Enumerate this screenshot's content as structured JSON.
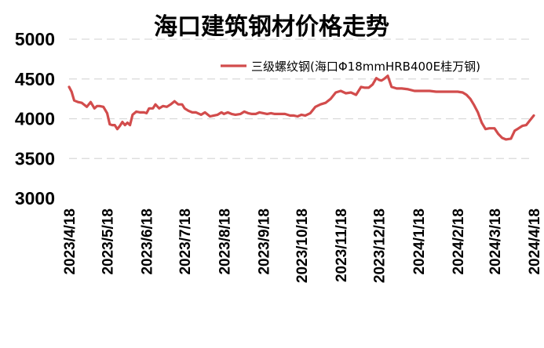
{
  "chart_data": {
    "type": "line",
    "title": "海口建筑钢材价格走势",
    "xlabel": "",
    "ylabel": "",
    "ylim": [
      3000,
      5000
    ],
    "yticks": [
      "5000",
      "4500",
      "4000",
      "3500",
      "3000"
    ],
    "grid": true,
    "legend_position": "top-right",
    "xticks": [
      "2023/4/18",
      "2023/5/18",
      "2023/6/18",
      "2023/7/18",
      "2023/8/18",
      "2023/9/18",
      "2023/10/18",
      "2023/11/18",
      "2023/12/18",
      "2024/1/18",
      "2024/2/18",
      "2024/3/18",
      "2024/4/18"
    ],
    "series": [
      {
        "name": "三级螺纹钢(海口Φ18mmHRB400E桂万钢)",
        "color": "#d24c4c",
        "x": [
          "2023-04-18",
          "2023-04-20",
          "2023-04-22",
          "2023-04-25",
          "2023-04-28",
          "2023-05-02",
          "2023-05-05",
          "2023-05-08",
          "2023-05-10",
          "2023-05-12",
          "2023-05-15",
          "2023-05-18",
          "2023-05-20",
          "2023-05-22",
          "2023-05-24",
          "2023-05-26",
          "2023-05-28",
          "2023-05-30",
          "2023-06-01",
          "2023-06-03",
          "2023-06-05",
          "2023-06-07",
          "2023-06-10",
          "2023-06-13",
          "2023-06-16",
          "2023-06-18",
          "2023-06-20",
          "2023-06-23",
          "2023-06-25",
          "2023-06-28",
          "2023-07-01",
          "2023-07-04",
          "2023-07-07",
          "2023-07-10",
          "2023-07-13",
          "2023-07-16",
          "2023-07-18",
          "2023-07-21",
          "2023-07-24",
          "2023-07-27",
          "2023-07-31",
          "2023-08-03",
          "2023-08-07",
          "2023-08-10",
          "2023-08-13",
          "2023-08-16",
          "2023-08-18",
          "2023-08-21",
          "2023-08-24",
          "2023-08-27",
          "2023-08-31",
          "2023-09-03",
          "2023-09-06",
          "2023-09-09",
          "2023-09-12",
          "2023-09-15",
          "2023-09-18",
          "2023-09-21",
          "2023-09-24",
          "2023-09-27",
          "2023-10-01",
          "2023-10-05",
          "2023-10-09",
          "2023-10-12",
          "2023-10-15",
          "2023-10-18",
          "2023-10-21",
          "2023-10-25",
          "2023-10-29",
          "2023-11-02",
          "2023-11-06",
          "2023-11-10",
          "2023-11-14",
          "2023-11-18",
          "2023-11-22",
          "2023-11-26",
          "2023-11-30",
          "2023-12-04",
          "2023-12-07",
          "2023-12-10",
          "2023-12-13",
          "2023-12-16",
          "2023-12-18",
          "2023-12-20",
          "2023-12-22",
          "2023-12-25",
          "2023-12-28",
          "2024-01-01",
          "2024-01-05",
          "2024-01-10",
          "2024-01-15",
          "2024-01-18",
          "2024-01-22",
          "2024-01-27",
          "2024-02-01",
          "2024-02-06",
          "2024-02-11",
          "2024-02-18",
          "2024-02-22",
          "2024-02-25",
          "2024-02-28",
          "2024-03-02",
          "2024-03-05",
          "2024-03-08",
          "2024-03-11",
          "2024-03-14",
          "2024-03-18",
          "2024-03-21",
          "2024-03-24",
          "2024-03-27",
          "2024-03-31",
          "2024-04-03",
          "2024-04-06",
          "2024-04-09",
          "2024-04-12",
          "2024-04-15",
          "2024-04-18"
        ],
        "y": [
          4400,
          4340,
          4230,
          4210,
          4200,
          4150,
          4210,
          4130,
          4160,
          4160,
          4150,
          4070,
          3930,
          3920,
          3920,
          3870,
          3910,
          3960,
          3920,
          3950,
          3920,
          4050,
          4090,
          4080,
          4080,
          4070,
          4130,
          4130,
          4180,
          4130,
          4160,
          4150,
          4180,
          4220,
          4180,
          4180,
          4130,
          4100,
          4080,
          4080,
          4050,
          4080,
          4030,
          4040,
          4050,
          4080,
          4060,
          4080,
          4060,
          4050,
          4060,
          4090,
          4070,
          4060,
          4060,
          4080,
          4070,
          4060,
          4070,
          4060,
          4060,
          4060,
          4040,
          4040,
          4030,
          4050,
          4040,
          4070,
          4150,
          4180,
          4200,
          4250,
          4330,
          4350,
          4320,
          4330,
          4300,
          4400,
          4390,
          4390,
          4430,
          4510,
          4490,
          4480,
          4500,
          4540,
          4400,
          4380,
          4380,
          4370,
          4350,
          4350,
          4350,
          4350,
          4340,
          4340,
          4340,
          4340,
          4330,
          4300,
          4250,
          4170,
          4080,
          3950,
          3870,
          3880,
          3880,
          3810,
          3760,
          3740,
          3750,
          3850,
          3880,
          3910,
          3920,
          3980,
          4040
        ]
      }
    ]
  }
}
